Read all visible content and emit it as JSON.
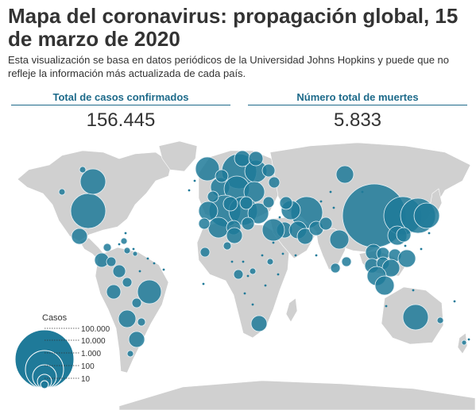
{
  "header": {
    "title": "Mapa del coronavirus: propagación global, 15 de marzo de 2020",
    "subtitle": "Esta visualización se basa en datos periódicos de la Universidad Johns Hopkins y puede que no refleje la información más actualizada de cada país."
  },
  "stats": {
    "confirmed_label": "Total de casos confirmados",
    "confirmed_value": "156.445",
    "deaths_label": "Número total de muertes",
    "deaths_value": "5.833"
  },
  "legend": {
    "title": "Casos",
    "levels": [
      {
        "value": 100000,
        "label": "100.000"
      },
      {
        "value": 10000,
        "label": "10.000"
      },
      {
        "value": 1000,
        "label": "1.000"
      },
      {
        "value": 100,
        "label": "100"
      },
      {
        "value": 10,
        "label": "10"
      }
    ]
  },
  "colors": {
    "bubble": "#1f7a99",
    "bubble_stroke": "#e8f2f6",
    "land": "#d0d0d0",
    "accent": "#1d6a8a"
  }
}
